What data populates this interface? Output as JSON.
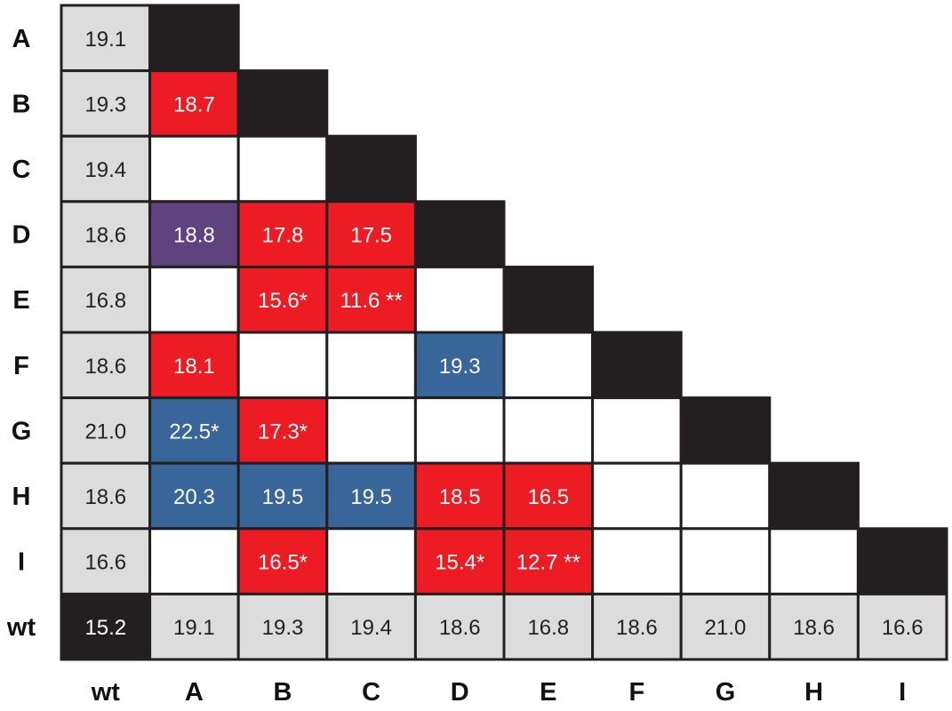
{
  "colors": {
    "black": "#231f20",
    "gray": "#dcdcdc",
    "red": "#ed1c24",
    "purple": "#5e437f",
    "blue": "#38659a",
    "white": "#ffffff",
    "grid": "#231f20",
    "dark_text": "#231f20",
    "light_text": "#ffffff"
  },
  "chart_data": {
    "type": "heatmap",
    "row_labels": [
      "A",
      "B",
      "C",
      "D",
      "E",
      "F",
      "G",
      "H",
      "I",
      "wt"
    ],
    "col_labels": [
      "wt",
      "A",
      "B",
      "C",
      "D",
      "E",
      "F",
      "G",
      "H",
      "I"
    ],
    "cells": [
      [
        {
          "c": "gray",
          "t": "19.1"
        },
        {
          "c": "black",
          "t": ""
        }
      ],
      [
        {
          "c": "gray",
          "t": "19.3"
        },
        {
          "c": "red",
          "t": "18.7"
        },
        {
          "c": "black",
          "t": ""
        }
      ],
      [
        {
          "c": "gray",
          "t": "19.4"
        },
        {
          "c": "white",
          "t": ""
        },
        {
          "c": "white",
          "t": ""
        },
        {
          "c": "black",
          "t": ""
        }
      ],
      [
        {
          "c": "gray",
          "t": "18.6"
        },
        {
          "c": "purple",
          "t": "18.8"
        },
        {
          "c": "red",
          "t": "17.8"
        },
        {
          "c": "red",
          "t": "17.5"
        },
        {
          "c": "black",
          "t": ""
        }
      ],
      [
        {
          "c": "gray",
          "t": "16.8"
        },
        {
          "c": "white",
          "t": ""
        },
        {
          "c": "red",
          "t": "15.6*"
        },
        {
          "c": "red",
          "t": "11.6 **"
        },
        {
          "c": "white",
          "t": ""
        },
        {
          "c": "black",
          "t": ""
        }
      ],
      [
        {
          "c": "gray",
          "t": "18.6"
        },
        {
          "c": "red",
          "t": "18.1"
        },
        {
          "c": "white",
          "t": ""
        },
        {
          "c": "white",
          "t": ""
        },
        {
          "c": "blue",
          "t": "19.3"
        },
        {
          "c": "white",
          "t": ""
        },
        {
          "c": "black",
          "t": ""
        }
      ],
      [
        {
          "c": "gray",
          "t": "21.0"
        },
        {
          "c": "blue",
          "t": "22.5*"
        },
        {
          "c": "red",
          "t": "17.3*"
        },
        {
          "c": "white",
          "t": ""
        },
        {
          "c": "white",
          "t": ""
        },
        {
          "c": "white",
          "t": ""
        },
        {
          "c": "white",
          "t": ""
        },
        {
          "c": "black",
          "t": ""
        }
      ],
      [
        {
          "c": "gray",
          "t": "18.6"
        },
        {
          "c": "blue",
          "t": "20.3"
        },
        {
          "c": "blue",
          "t": "19.5"
        },
        {
          "c": "blue",
          "t": "19.5"
        },
        {
          "c": "red",
          "t": "18.5"
        },
        {
          "c": "red",
          "t": "16.5"
        },
        {
          "c": "white",
          "t": ""
        },
        {
          "c": "white",
          "t": ""
        },
        {
          "c": "black",
          "t": ""
        }
      ],
      [
        {
          "c": "gray",
          "t": "16.6"
        },
        {
          "c": "white",
          "t": ""
        },
        {
          "c": "red",
          "t": "16.5*"
        },
        {
          "c": "white",
          "t": ""
        },
        {
          "c": "red",
          "t": "15.4*"
        },
        {
          "c": "red",
          "t": "12.7 **"
        },
        {
          "c": "white",
          "t": ""
        },
        {
          "c": "white",
          "t": ""
        },
        {
          "c": "white",
          "t": ""
        },
        {
          "c": "black",
          "t": ""
        }
      ],
      [
        {
          "c": "black",
          "t": "15.2"
        },
        {
          "c": "gray",
          "t": "19.1"
        },
        {
          "c": "gray",
          "t": "19.3"
        },
        {
          "c": "gray",
          "t": "19.4"
        },
        {
          "c": "gray",
          "t": "18.6"
        },
        {
          "c": "gray",
          "t": "16.8"
        },
        {
          "c": "gray",
          "t": "18.6"
        },
        {
          "c": "gray",
          "t": "21.0"
        },
        {
          "c": "gray",
          "t": "18.6"
        },
        {
          "c": "gray",
          "t": "16.6"
        }
      ]
    ]
  }
}
